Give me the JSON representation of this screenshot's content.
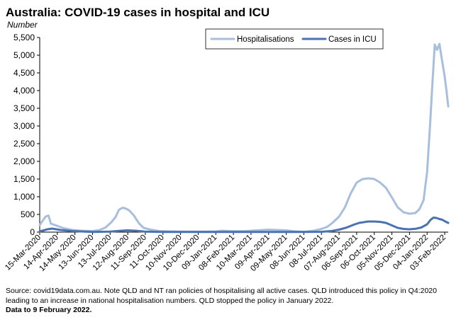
{
  "header": {
    "title": "Australia: COVID-19 cases in hospital and ICU",
    "unit_label": "Number"
  },
  "footnotes": {
    "source": "Source: covid19data.com.au. Note QLD and NT ran policies of hospitalising all active cases. QLD introduced this policy in Q4:2020 leading to an increase in national hospitalisation numbers. QLD stopped the policy in January 2022.",
    "data_to": "Data to 9 February 2022."
  },
  "chart_data": {
    "type": "line",
    "title": "Australia: COVID-19 cases in hospital and ICU",
    "ylabel": "Number",
    "ylim": [
      0,
      5500
    ],
    "yticks": [
      0,
      500,
      1000,
      1500,
      2000,
      2500,
      3000,
      3500,
      4000,
      4500,
      5000,
      5500
    ],
    "ytick_labels": [
      "0",
      "500",
      "1,000",
      "1,500",
      "2,000",
      "2,500",
      "3,000",
      "3,500",
      "4,000",
      "4,500",
      "5,000",
      "5,500"
    ],
    "x_start": "2020-03-15",
    "x_end": "2022-02-09",
    "xtick_labels": [
      "15-Mar-2020",
      "14-Apr-2020",
      "14-May-2020",
      "13-Jun-2020",
      "13-Jul-2020",
      "12-Aug-2020",
      "11-Sep-2020",
      "11-Oct-2020",
      "10-Nov-2020",
      "10-Dec-2020",
      "09-Jan-2021",
      "08-Feb-2021",
      "10-Mar-2021",
      "09-Apr-2021",
      "09-May-2021",
      "08-Jun-2021",
      "08-Jul-2021",
      "07-Aug-2021",
      "06-Sep-2021",
      "06-Oct-2021",
      "05-Nov-2021",
      "05-Dec-2021",
      "04-Jan-2022",
      "03-Feb-2022"
    ],
    "grid": false,
    "legend_position": "top-center",
    "series": [
      {
        "name": "Hospitalisations",
        "color": "#a7bfdd",
        "x": [
          "2020-03-15",
          "2020-03-25",
          "2020-03-30",
          "2020-04-03",
          "2020-04-10",
          "2020-04-25",
          "2020-05-10",
          "2020-05-25",
          "2020-06-13",
          "2020-06-25",
          "2020-07-05",
          "2020-07-15",
          "2020-07-22",
          "2020-07-28",
          "2020-08-03",
          "2020-08-08",
          "2020-08-14",
          "2020-08-22",
          "2020-08-31",
          "2020-09-08",
          "2020-09-20",
          "2020-10-05",
          "2020-10-25",
          "2020-11-20",
          "2020-12-20",
          "2021-01-09",
          "2021-01-20",
          "2021-02-08",
          "2021-03-01",
          "2021-03-20",
          "2021-04-09",
          "2021-04-25",
          "2021-05-09",
          "2021-05-25",
          "2021-06-10",
          "2021-06-25",
          "2021-07-08",
          "2021-07-18",
          "2021-07-28",
          "2021-08-07",
          "2021-08-17",
          "2021-08-27",
          "2021-09-06",
          "2021-09-16",
          "2021-09-26",
          "2021-10-06",
          "2021-10-16",
          "2021-10-26",
          "2021-11-05",
          "2021-11-15",
          "2021-11-25",
          "2021-12-05",
          "2021-12-15",
          "2021-12-22",
          "2021-12-29",
          "2022-01-04",
          "2022-01-09",
          "2022-01-13",
          "2022-01-17",
          "2022-01-21",
          "2022-01-25",
          "2022-01-29",
          "2022-02-03",
          "2022-02-06",
          "2022-02-09"
        ],
        "y": [
          200,
          440,
          470,
          240,
          200,
          110,
          60,
          40,
          30,
          60,
          130,
          280,
          420,
          630,
          690,
          670,
          620,
          480,
          250,
          120,
          70,
          30,
          20,
          15,
          15,
          20,
          40,
          25,
          30,
          50,
          70,
          60,
          50,
          20,
          10,
          40,
          90,
          150,
          280,
          440,
          700,
          1100,
          1400,
          1500,
          1520,
          1500,
          1400,
          1250,
          980,
          700,
          560,
          520,
          540,
          650,
          900,
          1700,
          3000,
          4200,
          5300,
          5150,
          5320,
          4900,
          4400,
          4000,
          3550
        ]
      },
      {
        "name": "Cases in ICU",
        "color": "#4a72b0",
        "x": [
          "2020-03-15",
          "2020-03-28",
          "2020-04-05",
          "2020-04-20",
          "2020-05-10",
          "2020-06-13",
          "2020-07-13",
          "2020-08-01",
          "2020-08-12",
          "2020-08-25",
          "2020-09-10",
          "2020-10-10",
          "2020-12-10",
          "2021-03-10",
          "2021-06-08",
          "2021-07-08",
          "2021-07-25",
          "2021-08-07",
          "2021-08-20",
          "2021-09-01",
          "2021-09-10",
          "2021-09-25",
          "2021-10-06",
          "2021-10-16",
          "2021-10-26",
          "2021-11-05",
          "2021-11-15",
          "2021-11-25",
          "2021-12-05",
          "2021-12-15",
          "2021-12-25",
          "2022-01-04",
          "2022-01-10",
          "2022-01-15",
          "2022-01-20",
          "2022-01-25",
          "2022-01-30",
          "2022-02-03",
          "2022-02-09"
        ],
        "y": [
          20,
          80,
          100,
          60,
          30,
          5,
          15,
          40,
          50,
          40,
          15,
          5,
          5,
          5,
          5,
          10,
          30,
          70,
          130,
          210,
          260,
          300,
          300,
          290,
          260,
          190,
          120,
          90,
          80,
          95,
          130,
          220,
          350,
          410,
          400,
          370,
          350,
          310,
          260
        ]
      }
    ]
  }
}
